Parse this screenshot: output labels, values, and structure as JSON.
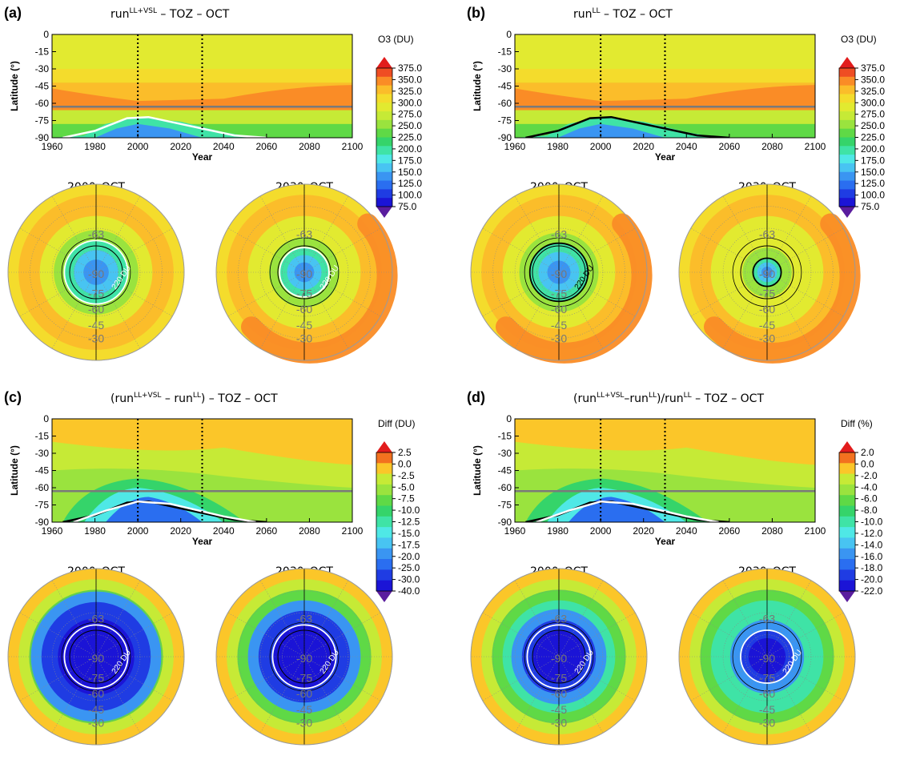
{
  "colormaps": {
    "abs": [
      "#5a1d9e",
      "#1b14d6",
      "#1f3ce3",
      "#2a6ef0",
      "#3a95f2",
      "#48c4f2",
      "#4fe8e6",
      "#3fe3a6",
      "#35d46a",
      "#5fd946",
      "#9ae33e",
      "#c6ea36",
      "#e2ea30",
      "#f4dc2c",
      "#fbbd2a",
      "#fa8c26",
      "#ef4d23",
      "#e21c1c"
    ],
    "diff_du": [
      "#5a1d9e",
      "#1b14d6",
      "#1f3ce3",
      "#2a6ef0",
      "#3a95f2",
      "#48c4f2",
      "#4fe8e6",
      "#3fe3a6",
      "#35d46a",
      "#5fd946",
      "#9ae33e",
      "#c6ea36",
      "#fbc629",
      "#f3711f",
      "#e21c1c"
    ],
    "diff_pct": [
      "#5a1d9e",
      "#1b14d6",
      "#1f3ce3",
      "#2a6ef0",
      "#3a95f2",
      "#48c4f2",
      "#4fe8e6",
      "#3fe3a6",
      "#35d46a",
      "#5fd946",
      "#9ae33e",
      "#c6ea36",
      "#fbc629",
      "#f3711f",
      "#e21c1c"
    ]
  },
  "chart_data": [
    {
      "panel_label": "(a)",
      "type": "heatmap",
      "title_parts": [
        "run",
        "LL+VSL",
        "  –   TOZ   –   OCT"
      ],
      "xlabel": "Year",
      "ylabel": "Latitude (°)",
      "x_ticks": [
        "1960",
        "1980",
        "2000",
        "2020",
        "2040",
        "2060",
        "2080",
        "2100"
      ],
      "y_ticks": [
        "0",
        "-15",
        "-30",
        "-45",
        "-60",
        "-75",
        "-90"
      ],
      "xlim": [
        1960,
        2100
      ],
      "ylim": [
        -90,
        0
      ],
      "vlines": [
        2000,
        2030
      ],
      "hline": -63,
      "colorbar_title": "O3 (DU)",
      "colorbar_ticks": [
        "375.0",
        "350.0",
        "325.0",
        "300.0",
        "275.0",
        "250.0",
        "225.0",
        "200.0",
        "175.0",
        "150.0",
        "125.0",
        "100.0",
        "75.0"
      ],
      "polar_maps": [
        {
          "title": "2000–OCT",
          "rings": [
            "-63",
            "-90",
            "-75",
            "-60",
            "-45",
            "-30"
          ],
          "contour_label": "220 DU",
          "hole_radius": 0.36,
          "arc": false
        },
        {
          "title": "2030–OCT",
          "rings": [
            "-63",
            "-90",
            "-75",
            "-60",
            "-45",
            "-30"
          ],
          "contour_label": "220 DU",
          "hole_radius": 0.28,
          "arc": true
        }
      ]
    },
    {
      "panel_label": "(b)",
      "type": "heatmap",
      "title_parts": [
        "run",
        "LL",
        "   –   TOZ   –   OCT"
      ],
      "xlabel": "Year",
      "ylabel": "Latitude (°)",
      "x_ticks": [
        "1960",
        "1980",
        "2000",
        "2020",
        "2040",
        "2060",
        "2080",
        "2100"
      ],
      "y_ticks": [
        "0",
        "-15",
        "-30",
        "-45",
        "-60",
        "-75",
        "-90"
      ],
      "xlim": [
        1960,
        2100
      ],
      "ylim": [
        -90,
        0
      ],
      "vlines": [
        2000,
        2030
      ],
      "hline": -63,
      "colorbar_title": "O3 (DU)",
      "colorbar_ticks": [
        "375.0",
        "350.0",
        "325.0",
        "300.0",
        "275.0",
        "250.0",
        "225.0",
        "200.0",
        "175.0",
        "150.0",
        "125.0",
        "100.0",
        "75.0"
      ],
      "polar_maps": [
        {
          "title": "2000–OCT",
          "rings": [
            "-63",
            "-90",
            "-75",
            "-60",
            "-45",
            "-30"
          ],
          "contour_label": "220 DU",
          "hole_radius": 0.33,
          "arc": true
        },
        {
          "title": "2030–OCT",
          "rings": [
            "-63",
            "-90",
            "-75",
            "-60",
            "-45",
            "-30"
          ],
          "contour_label": "",
          "hole_radius": 0.16,
          "arc": true
        }
      ]
    },
    {
      "panel_label": "(c)",
      "type": "heatmap",
      "title_parts": [
        "(run",
        "LL+VSL",
        " – run",
        "LL",
        ")   –   TOZ   –   OCT"
      ],
      "xlabel": "Year",
      "ylabel": "Latitude (°)",
      "x_ticks": [
        "1960",
        "1980",
        "2000",
        "2020",
        "2040",
        "2060",
        "2080",
        "2100"
      ],
      "y_ticks": [
        "0",
        "-15",
        "-30",
        "-45",
        "-60",
        "-75",
        "-90"
      ],
      "xlim": [
        1960,
        2100
      ],
      "ylim": [
        -90,
        0
      ],
      "vlines": [
        2000,
        2030
      ],
      "hline": -63,
      "colorbar_title": "Diff (DU)",
      "colorbar_ticks": [
        "2.5",
        "0.0",
        "-2.5",
        "-5.0",
        "-7.5",
        "-10.0",
        "-12.5",
        "-15.0",
        "-17.5",
        "-20.0",
        "-25.0",
        "-30.0",
        "-40.0"
      ],
      "polar_maps": [
        {
          "title": "2000–OCT",
          "rings": [
            "-63",
            "-90",
            "-75",
            "-60",
            "-45",
            "-30"
          ],
          "contour_label": "220 DU",
          "hole_radius": 0.62,
          "arc": false
        },
        {
          "title": "2030–OCT",
          "rings": [
            "-63",
            "-90",
            "-75",
            "-60",
            "-45",
            "-30"
          ],
          "contour_label": "220 DU",
          "hole_radius": 0.52,
          "arc": false
        }
      ]
    },
    {
      "panel_label": "(d)",
      "type": "heatmap",
      "title_parts": [
        "(run",
        "LL+VSL",
        "–run",
        "LL",
        ")/run",
        "LL",
        " – TOZ – OCT"
      ],
      "xlabel": "Year",
      "ylabel": "Latitude (°)",
      "x_ticks": [
        "1960",
        "1980",
        "2000",
        "2020",
        "2040",
        "2060",
        "2080",
        "2100"
      ],
      "y_ticks": [
        "0",
        "-15",
        "-30",
        "-45",
        "-60",
        "-75",
        "-90"
      ],
      "xlim": [
        1960,
        2100
      ],
      "ylim": [
        -90,
        0
      ],
      "vlines": [
        2000,
        2030
      ],
      "hline": -63,
      "colorbar_title": "Diff (%)",
      "colorbar_ticks": [
        "2.0",
        "0.0",
        "-2.0",
        "-4.0",
        "-6.0",
        "-8.0",
        "-10.0",
        "-12.0",
        "-14.0",
        "-16.0",
        "-18.0",
        "-20.0",
        "-22.0"
      ],
      "polar_maps": [
        {
          "title": "2000–OCT",
          "rings": [
            "-63",
            "-90",
            "-75",
            "-60",
            "-45",
            "-30"
          ],
          "contour_label": "220 DU",
          "hole_radius": 0.42,
          "arc": false
        },
        {
          "title": "2030–OCT",
          "rings": [
            "-63",
            "-90",
            "-75",
            "-60",
            "-45",
            "-30"
          ],
          "contour_label": "220 DU",
          "hole_radius": 0.3,
          "arc": false
        }
      ]
    }
  ]
}
